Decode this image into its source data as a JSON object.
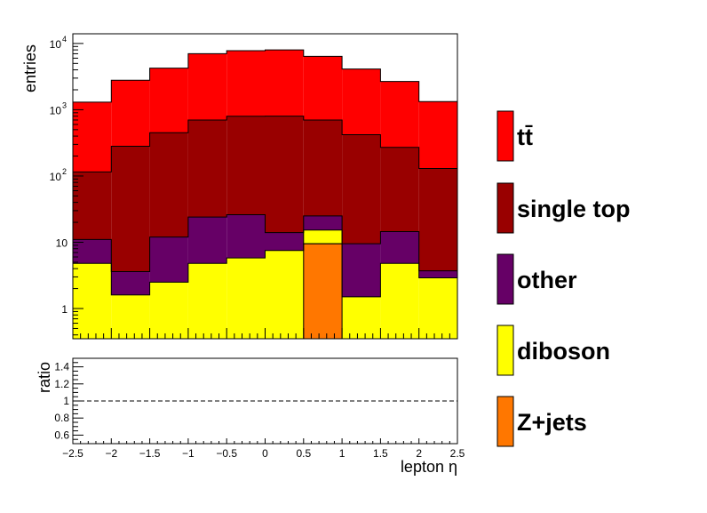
{
  "chart_data": {
    "type": "bar",
    "subtype": "stacked-histogram-with-ratio",
    "xlabel": "lepton η",
    "x_edges": [
      -2.5,
      -2.0,
      -1.5,
      -1.0,
      -0.5,
      0.0,
      0.5,
      1.0,
      1.5,
      2.0,
      2.5
    ],
    "xlim": [
      -2.5,
      2.5
    ],
    "x_ticks": [
      "-2.5",
      "-2",
      "-1.5",
      "-1",
      "-0.5",
      "0",
      "0.5",
      "1",
      "1.5",
      "2",
      "2.5"
    ],
    "main": {
      "ylabel": "entries",
      "yscale": "log",
      "ylim": [
        0.35,
        14000
      ],
      "y_ticks": [
        {
          "value": 1,
          "label": "1"
        },
        {
          "value": 10,
          "label": "10"
        },
        {
          "value": 100,
          "label": "10",
          "exp": "2"
        },
        {
          "value": 1000,
          "label": "10",
          "exp": "3"
        },
        {
          "value": 10000,
          "label": "10",
          "exp": "4"
        }
      ]
    },
    "series": [
      {
        "name": "Z+jets",
        "color": "#ff7700",
        "values": [
          0,
          0,
          0,
          0,
          0,
          0,
          9.5,
          0,
          0,
          0
        ]
      },
      {
        "name": "diboson",
        "color": "#ffff00",
        "values": [
          4.8,
          1.6,
          2.5,
          4.8,
          5.8,
          7.5,
          5.8,
          1.5,
          4.8,
          2.9
        ]
      },
      {
        "name": "other",
        "color": "#660066",
        "values": [
          6.2,
          2.0,
          9.5,
          19.2,
          20.2,
          6.5,
          9.7,
          8.0,
          9.7,
          0.8
        ]
      },
      {
        "name": "single top",
        "color": "#990000",
        "values": [
          104,
          278,
          438,
          676,
          770,
          786,
          675,
          410,
          256,
          126
        ]
      },
      {
        "name": "tt̄",
        "color": "#ff0000",
        "values": [
          1185,
          2500,
          3800,
          6300,
          7000,
          7200,
          5700,
          3700,
          2400,
          1200
        ]
      }
    ],
    "legend_order": [
      "tt̄",
      "single top",
      "other",
      "diboson",
      "Z+jets"
    ],
    "legend_position": "right",
    "ratio": {
      "ylabel": "ratio",
      "ylim": [
        0.5,
        1.5
      ],
      "y_ticks": [
        "0.6",
        "0.8",
        "1",
        "1.2",
        "1.4"
      ],
      "reference": 1.0
    },
    "grid": false
  }
}
